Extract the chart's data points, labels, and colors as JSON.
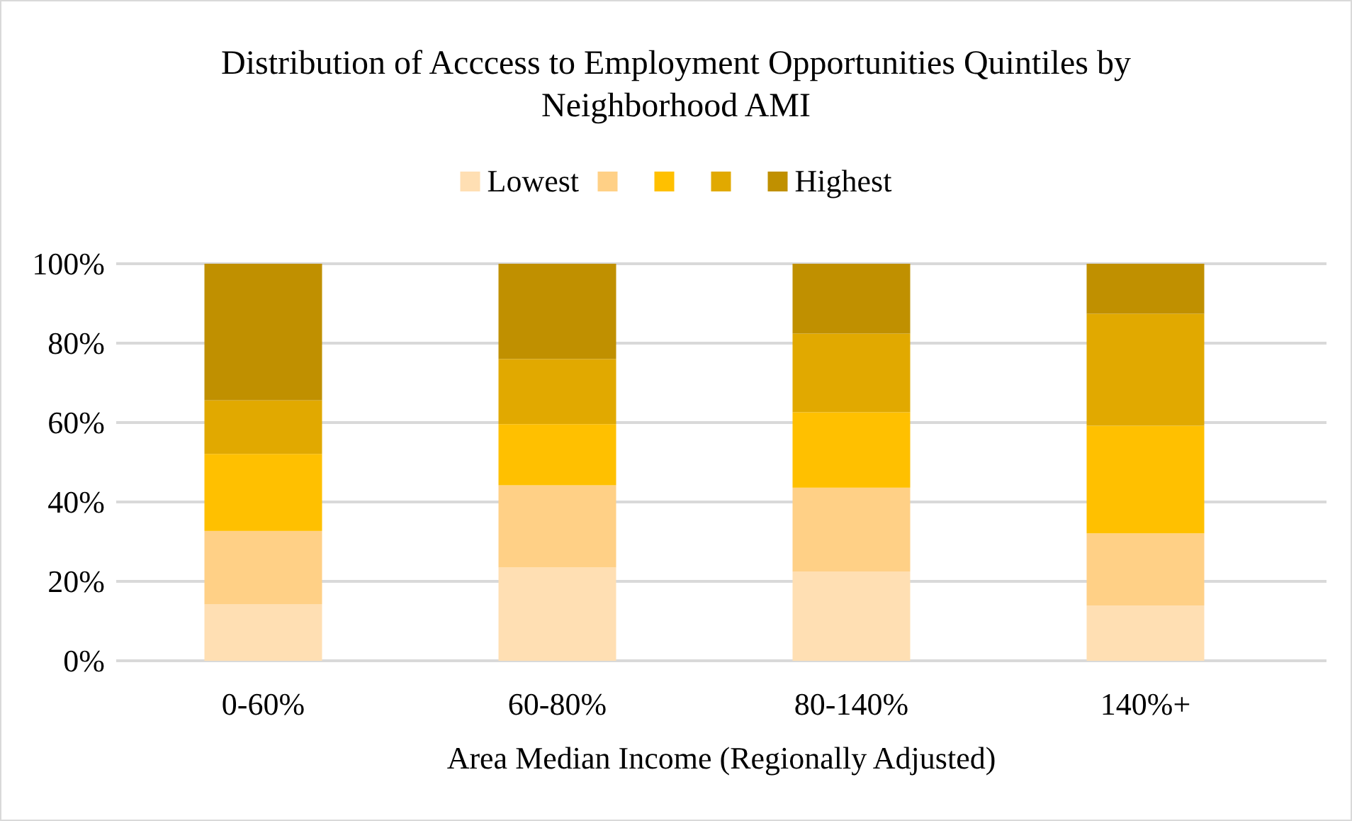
{
  "chart_data": {
    "type": "bar",
    "stacked": true,
    "title": "Distribution of Acccess to Employment Opportunities Quintiles by Neighborhood AMI",
    "xlabel": "Area Median Income (Regionally Adjusted)",
    "categories": [
      "0-60%",
      "60-80%",
      "80-140%",
      "140%+"
    ],
    "series": [
      {
        "name": "Lowest",
        "color": "#ffdfb3",
        "values": [
          14.2,
          23.5,
          22.5,
          13.9
        ]
      },
      {
        "color": "#ffd086",
        "values": [
          18.5,
          20.7,
          21.1,
          18.2
        ]
      },
      {
        "color": "#ffc000",
        "values": [
          19.4,
          15.4,
          19.0,
          27.1
        ]
      },
      {
        "color": "#e1a900",
        "values": [
          13.5,
          16.4,
          19.8,
          28.2
        ]
      },
      {
        "name": "Highest",
        "color": "#c09000",
        "values": [
          34.4,
          24.0,
          17.6,
          12.6
        ]
      }
    ],
    "ylim": [
      0,
      100
    ],
    "yticks": [
      {
        "value": 0,
        "label": "0%"
      },
      {
        "value": 20,
        "label": "20%"
      },
      {
        "value": 40,
        "label": "40%"
      },
      {
        "value": 60,
        "label": "60%"
      },
      {
        "value": 80,
        "label": "80%"
      },
      {
        "value": 100,
        "label": "100%"
      }
    ],
    "grid": "y",
    "legend": "top"
  }
}
